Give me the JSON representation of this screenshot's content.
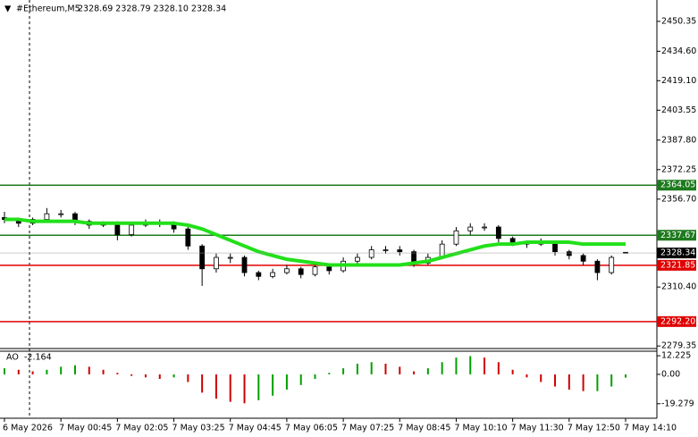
{
  "chart_data": {
    "type": "candlestick",
    "title": "#Ethereum,M5",
    "quote": "2328.69 2328.79 2328.10 2328.34",
    "categories": [
      "6 May 2026",
      null,
      null,
      null,
      "7 May 00:45",
      null,
      null,
      null,
      "7 May 02:05",
      null,
      null,
      null,
      "7 May 03:25",
      null,
      null,
      null,
      "7 May 04:45",
      null,
      null,
      null,
      "7 May 06:05",
      null,
      null,
      null,
      "7 May 07:25",
      null,
      null,
      null,
      "7 May 08:45",
      null,
      null,
      null,
      "7 May 10:10",
      null,
      null,
      null,
      "7 May 11:30",
      null,
      null,
      null,
      "7 May 12:50",
      null,
      null,
      null,
      "7 May 14:10"
    ],
    "open": [
      2347,
      2346,
      2344,
      2346,
      2349,
      2349,
      2345,
      2343,
      2344,
      2338,
      2343,
      2344,
      2344,
      2341,
      2332,
      2320,
      2326,
      2326,
      2318,
      2316,
      2318,
      2320,
      2317,
      2321,
      2319,
      2324,
      2326,
      2330,
      2330,
      2329,
      2323,
      2326,
      2333,
      2340,
      2342,
      2342,
      2336,
      2334,
      2333,
      2334,
      2329,
      2327,
      2324,
      2318,
      2328.69
    ],
    "high": [
      2350,
      2347,
      2347,
      2352,
      2351,
      2350,
      2346,
      2345,
      2345,
      2344,
      2346,
      2346,
      2345,
      2342,
      2333,
      2328,
      2328,
      2327,
      2319,
      2320,
      2322,
      2321,
      2322,
      2322,
      2326,
      2328,
      2332,
      2332,
      2332,
      2330,
      2328,
      2335,
      2342,
      2344,
      2344,
      2343,
      2337,
      2335,
      2336,
      2335,
      2330,
      2328,
      2325,
      2327,
      2328.79
    ],
    "low": [
      2344,
      2342,
      2343,
      2345,
      2347,
      2343,
      2341,
      2342,
      2335,
      2337,
      2342,
      2342,
      2339,
      2330,
      2311,
      2318,
      2323,
      2316,
      2314,
      2315,
      2317,
      2315,
      2316,
      2317,
      2318,
      2322,
      2325,
      2328,
      2327,
      2321,
      2322,
      2325,
      2332,
      2338,
      2340,
      2334,
      2332,
      2331,
      2332,
      2327,
      2325,
      2322,
      2314,
      2317,
      2328.1
    ],
    "close": [
      2346,
      2344,
      2346,
      2349,
      2349,
      2345,
      2343,
      2344,
      2338,
      2343,
      2344,
      2344,
      2341,
      2332,
      2320,
      2326,
      2326,
      2318,
      2316,
      2318,
      2320,
      2317,
      2321,
      2319,
      2324,
      2326,
      2330,
      2330,
      2329,
      2323,
      2326,
      2333,
      2340,
      2342,
      2342,
      2336,
      2334,
      2333,
      2334,
      2329,
      2327,
      2324,
      2318,
      2326,
      2328.34
    ],
    "candle_color": "#000000",
    "ma": {
      "color": "#22e01a",
      "values": [
        2346,
        2346,
        2345,
        2345,
        2345,
        2345,
        2344,
        2344,
        2344,
        2344,
        2344,
        2344,
        2344,
        2343,
        2341,
        2338,
        2335,
        2332,
        2329,
        2327,
        2325,
        2324,
        2323,
        2322,
        2322,
        2322,
        2322,
        2322,
        2322,
        2323,
        2324,
        2326,
        2328,
        2330,
        2332,
        2333,
        2333,
        2334,
        2334,
        2334,
        2334,
        2333,
        2333,
        2333,
        2333
      ]
    },
    "ylim": [
      2278,
      2461.6
    ],
    "yticks": [
      {
        "value": 2450.35,
        "label": "2450.35"
      },
      {
        "value": 2434.6,
        "label": "2434.60"
      },
      {
        "value": 2419.1,
        "label": "2419.10"
      },
      {
        "value": 2403.55,
        "label": "2403.55"
      },
      {
        "value": 2387.8,
        "label": "2387.80"
      },
      {
        "value": 2372.25,
        "label": "2372.25"
      },
      {
        "value": 2356.7,
        "label": "2356.70"
      },
      {
        "value": 2310.4,
        "label": "2310.40"
      },
      {
        "value": 2279.35,
        "label": "2279.35"
      }
    ],
    "levels": [
      {
        "value": 2364.05,
        "color": "#1e7a1e"
      },
      {
        "value": 2337.67,
        "color": "#1e7a1e"
      },
      {
        "value": 2321.85,
        "color": "#e00000"
      },
      {
        "value": 2292.2,
        "label": "2292.20",
        "color": "#e00000"
      }
    ],
    "last": 2328.34,
    "ao": {
      "name": "AO",
      "up_color": "#00a000",
      "down_color": "#d00000",
      "values": [
        4,
        3,
        2,
        3,
        5,
        6,
        5,
        3,
        1,
        -1,
        -2,
        -3,
        -2,
        -5,
        -12,
        -16,
        -18,
        -19,
        -17,
        -14,
        -10,
        -7,
        -3,
        1,
        4,
        7,
        8,
        7,
        5,
        2,
        4,
        8,
        11,
        12,
        11,
        8,
        3,
        -2,
        -5,
        -8,
        -10,
        -11,
        -11,
        -8,
        -2.164
      ],
      "ylim": [
        -28.8,
        15.2
      ],
      "yticks": [
        12.225,
        {
          "value": 0,
          "label": "0.00"
        },
        -19.279
      ]
    }
  }
}
